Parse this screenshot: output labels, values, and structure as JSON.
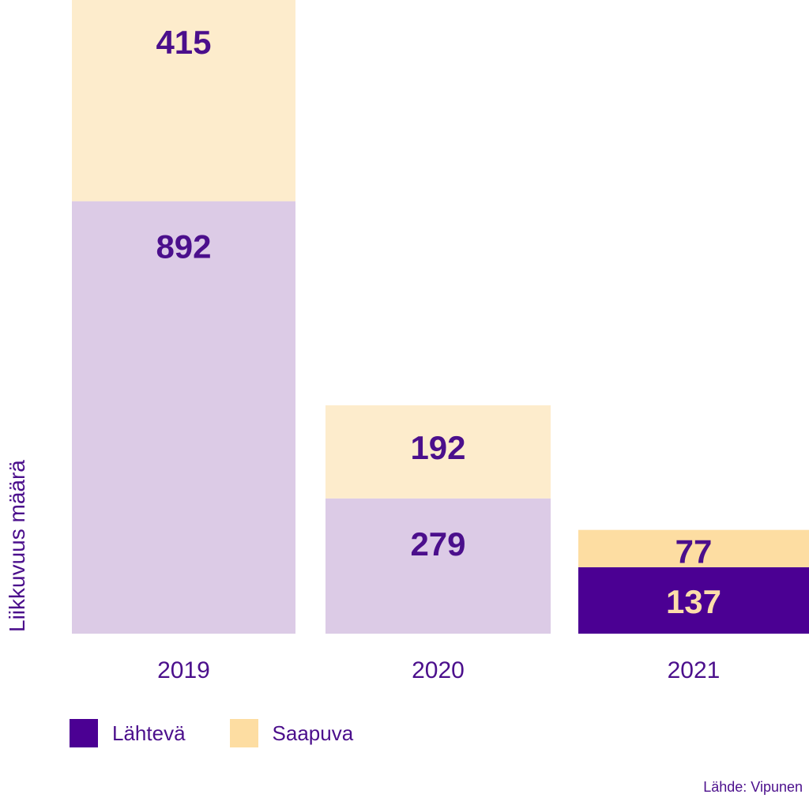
{
  "chart_data": {
    "type": "bar",
    "stacked": true,
    "categories": [
      "2019",
      "2020",
      "2021"
    ],
    "series": [
      {
        "name": "Lähtevä",
        "values": [
          892,
          279,
          137
        ]
      },
      {
        "name": "Saapuva",
        "values": [
          415,
          192,
          77
        ]
      }
    ],
    "ylabel": "Liikkuvuus määrä",
    "ylim": [
      0,
      1307
    ],
    "grid": false,
    "legend_position": "bottom-left",
    "colors": {
      "lahteva_light": "#dccbe6",
      "lahteva_dark": "#4b0093",
      "saapuva_light": "#fdeccc",
      "saapuva_dark": "#fddda2",
      "text_purple": "#4b0f8c",
      "text_on_dark": "#fdddaa"
    }
  },
  "source": "Lähde: Vipunen"
}
